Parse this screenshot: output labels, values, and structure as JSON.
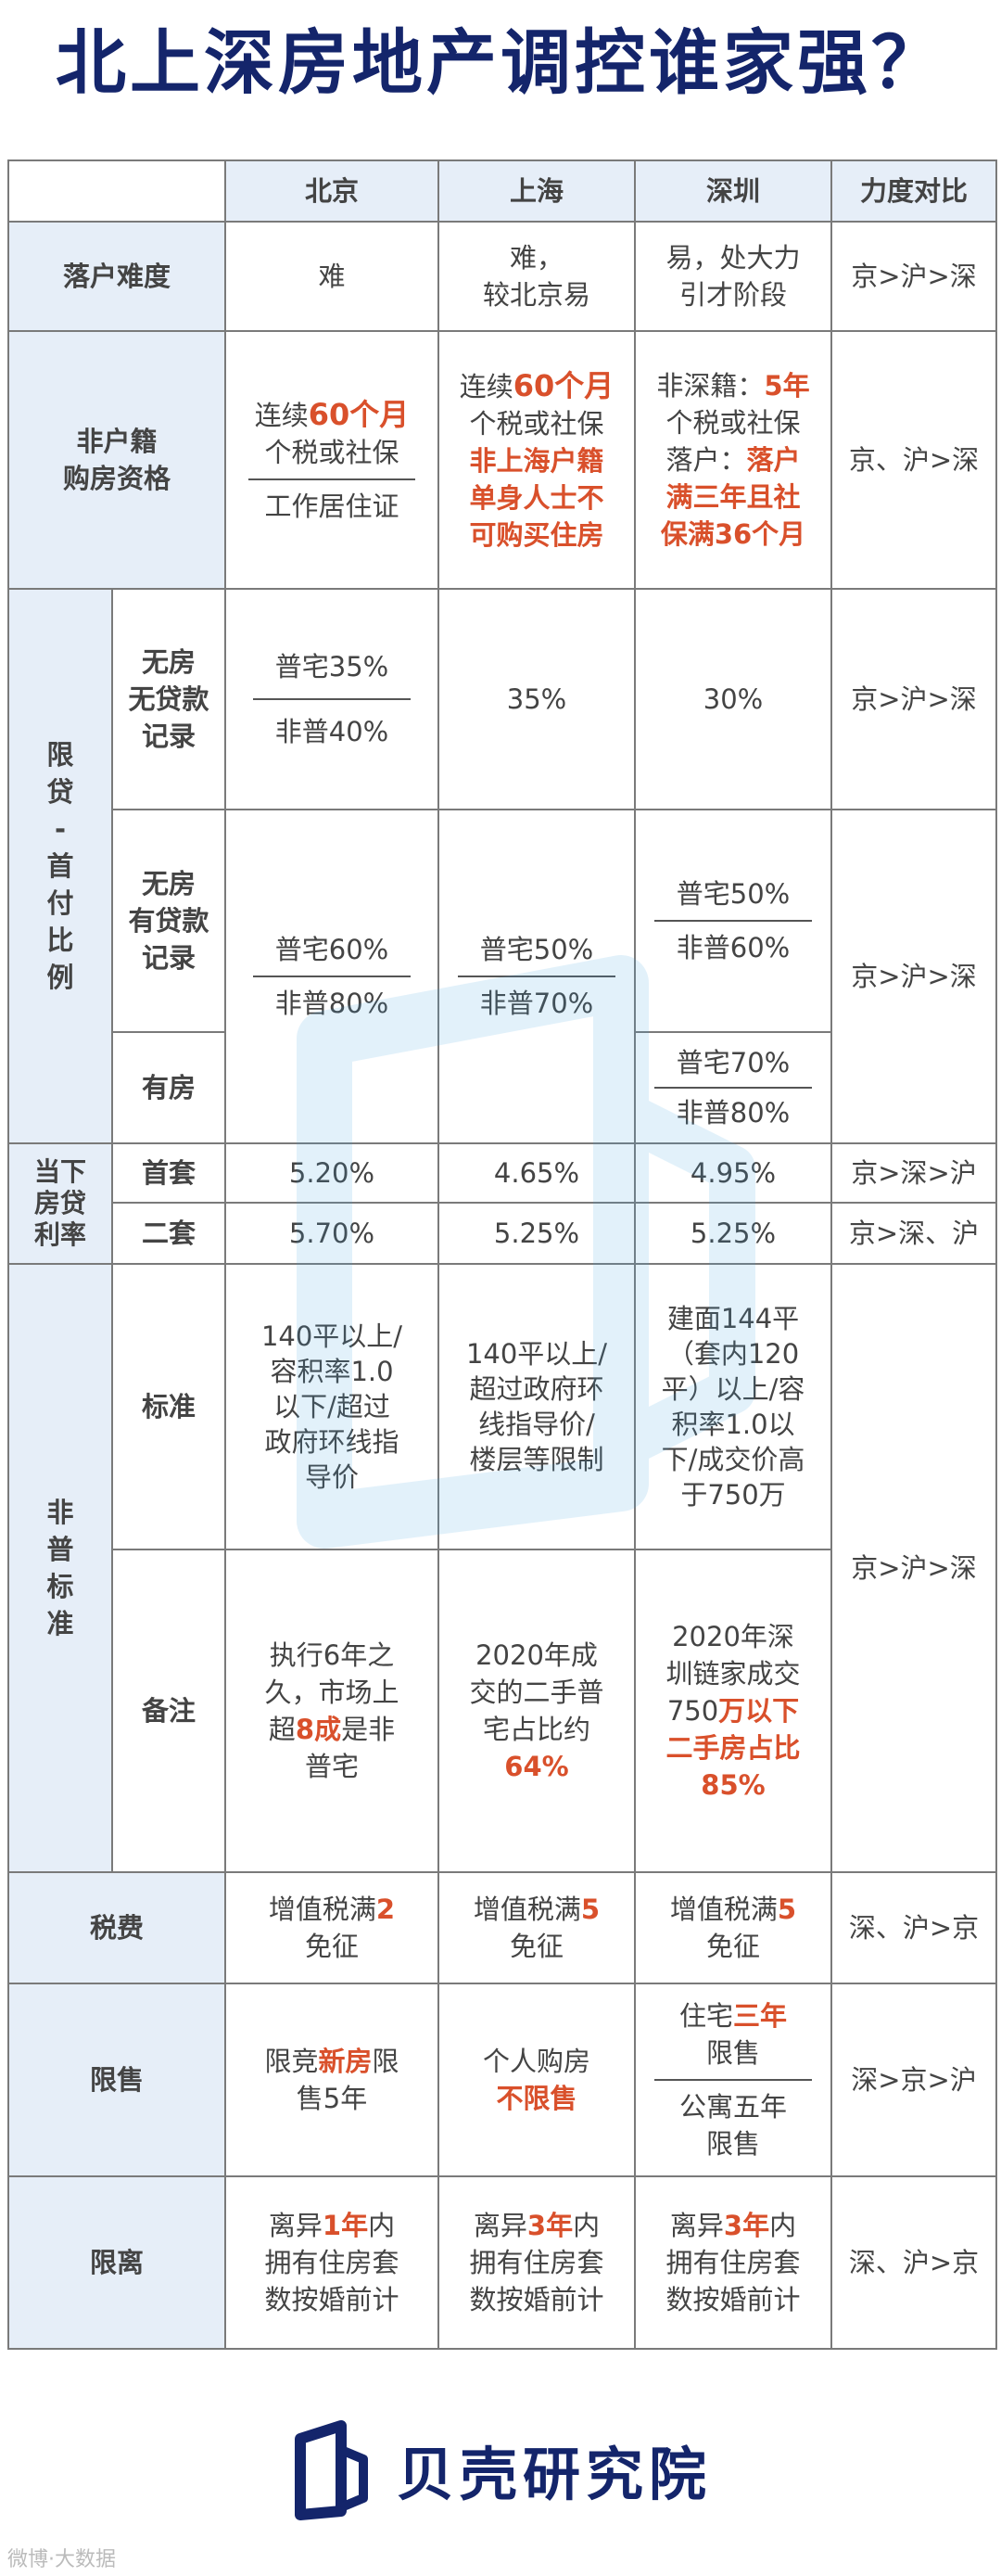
{
  "title": "北上深房地产调控谁家强？",
  "header": {
    "city1": "北京",
    "city2": "上海",
    "city3": "深圳",
    "compare": "力度对比"
  },
  "rows": {
    "settle": {
      "label": "落户难度",
      "bj": "难",
      "sh1": "难，",
      "sh2": "较北京易",
      "sz1": "易，处大力",
      "sz2": "引才阶段",
      "cmp": "京>沪>深"
    },
    "qual": {
      "label1": "非户籍",
      "label2": "购房资格",
      "bj_a": "连续",
      "bj_b": "60个月",
      "bj_c": "个税或社保",
      "bj_d": "工作居住证",
      "sh_a": "连续",
      "sh_b": "60个月",
      "sh_c": "个税或社保",
      "sh_d": "非上海户籍",
      "sh_e": "单身人士不",
      "sh_f": "可购买住房",
      "sz_a": "非深籍：",
      "sz_b": "5年",
      "sz_c": "个税或社保",
      "sz_d": "落户：",
      "sz_e": "落户",
      "sz_f": "满三年且社",
      "sz_g": "保满36个月",
      "cmp": "京、沪>深"
    },
    "loan": {
      "label": [
        "限",
        "贷",
        "-",
        "首",
        "付",
        "比",
        "例"
      ],
      "nh_label": [
        "无房",
        "无贷款",
        "记录"
      ],
      "nh_bj1": "普宅35%",
      "nh_bj2": "非普40%",
      "nh_sh": "35%",
      "nh_sz": "30%",
      "nh_cmp": "京>沪>深",
      "hl_label": [
        "无房",
        "有贷款",
        "记录"
      ],
      "hl_bj1": "普宅60%",
      "hl_bj2": "非普80%",
      "hl_sh1": "普宅50%",
      "hl_sh2": "非普70%",
      "hl_sz1": "普宅50%",
      "hl_sz2": "非普60%",
      "yf_label": "有房",
      "yf_sz1": "普宅70%",
      "yf_sz2": "非普80%",
      "cmp2": "京>沪>深"
    },
    "rate": {
      "label": [
        "当下",
        "房贷",
        "利率"
      ],
      "first": "首套",
      "first_bj": "5.20%",
      "first_sh": "4.65%",
      "first_sz": "4.95%",
      "first_cmp": "京>深>沪",
      "second": "二套",
      "second_bj": "5.70%",
      "second_sh": "5.25%",
      "second_sz": "5.25%",
      "second_cmp": "京>深、沪"
    },
    "std": {
      "label": [
        "非",
        "普",
        "标",
        "准"
      ],
      "std_label": "标准",
      "std_bj": [
        "140平以上/",
        "容积率1.0",
        "以下/超过",
        "政府环线指",
        "导价"
      ],
      "std_sh": [
        "140平以上/",
        "超过政府环",
        "线指导价/",
        "楼层等限制"
      ],
      "std_sz": [
        "建面144平",
        "（套内120",
        "平）以上/容",
        "积率1.0以",
        "下/成交价高",
        "于750万"
      ],
      "note_label": "备注",
      "note_bj_a": "执行6年之",
      "note_bj_b": "久，市场上",
      "note_bj_c": "超",
      "note_bj_d": "8成",
      "note_bj_e": "是非",
      "note_bj_f": "普宅",
      "note_sh_a": "2020年成",
      "note_sh_b": "交的二手普",
      "note_sh_c": "宅占比约",
      "note_sh_d": "64%",
      "note_sz_a": "2020年深",
      "note_sz_b": "圳链家成交",
      "note_sz_c": "750",
      "note_sz_d": "万以下",
      "note_sz_e": "二手房占比",
      "note_sz_f": "85%",
      "cmp": "京>沪>深"
    },
    "tax": {
      "label": "税费",
      "bj_a": "增值税满",
      "bj_b": "2",
      "bj_c": "免征",
      "sh_a": "增值税满",
      "sh_b": "5",
      "sh_c": "免征",
      "sz_a": "增值税满",
      "sz_b": "5",
      "sz_c": "免征",
      "cmp": "深、沪>京"
    },
    "sale": {
      "label": "限售",
      "bj_a": "限竞",
      "bj_b": "新房",
      "bj_c": "限",
      "bj_d": "售5年",
      "sh_a": "个人购房",
      "sh_b": "不限售",
      "sz_a": "住宅",
      "sz_b": "三年",
      "sz_c": "限售",
      "sz_d": "公寓五年",
      "sz_e": "限售",
      "cmp": "深>京>沪"
    },
    "div": {
      "label": "限离",
      "bj_a": "离异",
      "bj_b": "1年",
      "bj_c": "内",
      "sh_b": "3年",
      "sz_b": "3年",
      "l2": "拥有住房套",
      "l3": "数按婚前计",
      "cmp": "深、沪>京"
    }
  },
  "brand": {
    "name": "贝壳研究院",
    "colors": {
      "navy": "#14256b",
      "accent": "#d9502b",
      "watermark": "#3aa0e0"
    }
  },
  "credit": "微博·大数据"
}
